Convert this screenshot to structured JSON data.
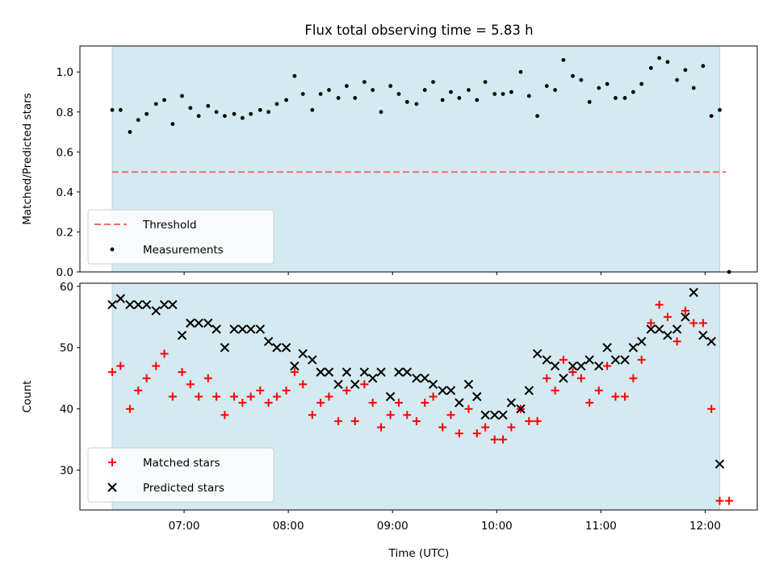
{
  "chart_data": {
    "title": "Flux total observing time = 5.83 h",
    "xlabel": "Time (UTC)",
    "x_unit": "hours (UTC)",
    "x_ticks": [
      {
        "value": 7,
        "label": "07:00"
      },
      {
        "value": 8,
        "label": "08:00"
      },
      {
        "value": 9,
        "label": "09:00"
      },
      {
        "value": 10,
        "label": "10:00"
      },
      {
        "value": 11,
        "label": "11:00"
      },
      {
        "value": 12,
        "label": "12:00"
      }
    ],
    "xlim": [
      6.0,
      12.5
    ],
    "observing_window": [
      6.31,
      12.14
    ],
    "window_color": "#d4eaf0",
    "panels": [
      {
        "type": "scatter",
        "ylabel": "Matched/Predicted stars",
        "ylim": [
          0,
          1.13
        ],
        "y_ticks": [
          0.0,
          0.2,
          0.4,
          0.6,
          0.8,
          1.0
        ],
        "y_tick_labels": [
          "0.0",
          "0.2",
          "0.4",
          "0.6",
          "0.8",
          "1.0"
        ],
        "legend_position": "lower-left",
        "series": [
          {
            "name": "Threshold",
            "kind": "dashed-line",
            "color": "#f07070",
            "x": [
              6.31,
              12.2
            ],
            "y": [
              0.5,
              0.5
            ]
          },
          {
            "name": "Measurements",
            "kind": "dot",
            "color": "#000000",
            "x": [
              6.31,
              6.39,
              6.48,
              6.56,
              6.64,
              6.73,
              6.81,
              6.89,
              6.98,
              7.06,
              7.14,
              7.23,
              7.31,
              7.39,
              7.48,
              7.56,
              7.64,
              7.73,
              7.81,
              7.89,
              7.98,
              8.06,
              8.14,
              8.23,
              8.31,
              8.39,
              8.48,
              8.56,
              8.64,
              8.73,
              8.81,
              8.89,
              8.98,
              9.06,
              9.14,
              9.23,
              9.31,
              9.39,
              9.48,
              9.56,
              9.64,
              9.73,
              9.81,
              9.89,
              9.98,
              10.06,
              10.14,
              10.23,
              10.31,
              10.39,
              10.48,
              10.56,
              10.64,
              10.73,
              10.81,
              10.89,
              10.98,
              11.06,
              11.14,
              11.23,
              11.31,
              11.39,
              11.48,
              11.56,
              11.64,
              11.73,
              11.81,
              11.89,
              11.98,
              12.06,
              12.14,
              12.23
            ],
            "y": [
              0.81,
              0.81,
              0.7,
              0.76,
              0.79,
              0.84,
              0.86,
              0.74,
              0.88,
              0.82,
              0.78,
              0.83,
              0.8,
              0.78,
              0.79,
              0.77,
              0.79,
              0.81,
              0.8,
              0.84,
              0.86,
              0.98,
              0.89,
              0.81,
              0.89,
              0.91,
              0.87,
              0.93,
              0.87,
              0.95,
              0.91,
              0.8,
              0.93,
              0.89,
              0.85,
              0.84,
              0.91,
              0.95,
              0.86,
              0.9,
              0.87,
              0.91,
              0.86,
              0.95,
              0.89,
              0.89,
              0.9,
              1.0,
              0.88,
              0.78,
              0.93,
              0.91,
              1.06,
              0.98,
              0.96,
              0.85,
              0.92,
              0.94,
              0.87,
              0.87,
              0.9,
              0.94,
              1.02,
              1.07,
              1.05,
              0.96,
              1.01,
              0.92,
              1.03,
              0.78,
              0.81,
              0.0
            ]
          }
        ]
      },
      {
        "type": "scatter",
        "ylabel": "Count",
        "ylim": [
          23.5,
          60.5
        ],
        "y_ticks": [
          30,
          40,
          50,
          60
        ],
        "y_tick_labels": [
          "30",
          "40",
          "50",
          "60"
        ],
        "legend_position": "lower-left",
        "series": [
          {
            "name": "Matched stars",
            "kind": "plus",
            "color": "#ff0000",
            "x": [
              6.31,
              6.39,
              6.48,
              6.56,
              6.64,
              6.73,
              6.81,
              6.89,
              6.98,
              7.06,
              7.14,
              7.23,
              7.31,
              7.39,
              7.48,
              7.56,
              7.64,
              7.73,
              7.81,
              7.89,
              7.98,
              8.06,
              8.14,
              8.23,
              8.31,
              8.39,
              8.48,
              8.56,
              8.64,
              8.73,
              8.81,
              8.89,
              8.98,
              9.06,
              9.14,
              9.23,
              9.31,
              9.39,
              9.48,
              9.56,
              9.64,
              9.73,
              9.81,
              9.89,
              9.98,
              10.06,
              10.14,
              10.23,
              10.31,
              10.39,
              10.48,
              10.56,
              10.64,
              10.73,
              10.81,
              10.89,
              10.98,
              11.06,
              11.14,
              11.23,
              11.31,
              11.39,
              11.48,
              11.56,
              11.64,
              11.73,
              11.81,
              11.89,
              11.98,
              12.06,
              12.14,
              12.23
            ],
            "y": [
              46,
              47,
              40,
              43,
              45,
              47,
              49,
              42,
              46,
              44,
              42,
              45,
              42,
              39,
              42,
              41,
              42,
              43,
              41,
              42,
              43,
              46,
              44,
              39,
              41,
              42,
              38,
              43,
              38,
              44,
              41,
              37,
              39,
              41,
              39,
              38,
              41,
              42,
              37,
              39,
              36,
              40,
              36,
              37,
              35,
              35,
              37,
              40,
              38,
              38,
              45,
              43,
              48,
              46,
              45,
              41,
              43,
              47,
              42,
              42,
              45,
              48,
              54,
              57,
              55,
              51,
              56,
              54,
              54,
              40,
              25,
              25
            ]
          },
          {
            "name": "Predicted stars",
            "kind": "x",
            "color": "#000000",
            "x": [
              6.31,
              6.39,
              6.48,
              6.56,
              6.64,
              6.73,
              6.81,
              6.89,
              6.98,
              7.06,
              7.14,
              7.23,
              7.31,
              7.39,
              7.48,
              7.56,
              7.64,
              7.73,
              7.81,
              7.89,
              7.98,
              8.06,
              8.14,
              8.23,
              8.31,
              8.39,
              8.48,
              8.56,
              8.64,
              8.73,
              8.81,
              8.89,
              8.98,
              9.06,
              9.14,
              9.23,
              9.31,
              9.39,
              9.48,
              9.56,
              9.64,
              9.73,
              9.81,
              9.89,
              9.98,
              10.06,
              10.14,
              10.23,
              10.31,
              10.39,
              10.48,
              10.56,
              10.64,
              10.73,
              10.81,
              10.89,
              10.98,
              11.06,
              11.14,
              11.23,
              11.31,
              11.39,
              11.48,
              11.56,
              11.64,
              11.73,
              11.81,
              11.89,
              11.98,
              12.06,
              12.14
            ],
            "y": [
              57,
              58,
              57,
              57,
              57,
              56,
              57,
              57,
              52,
              54,
              54,
              54,
              53,
              50,
              53,
              53,
              53,
              53,
              51,
              50,
              50,
              47,
              49,
              48,
              46,
              46,
              44,
              46,
              44,
              46,
              45,
              46,
              42,
              46,
              46,
              45,
              45,
              44,
              43,
              43,
              41,
              44,
              42,
              39,
              39,
              39,
              41,
              40,
              43,
              49,
              48,
              47,
              45,
              47,
              47,
              48,
              47,
              50,
              48,
              48,
              50,
              51,
              53,
              53,
              52,
              53,
              55,
              59,
              52,
              51,
              31
            ]
          }
        ]
      }
    ]
  }
}
